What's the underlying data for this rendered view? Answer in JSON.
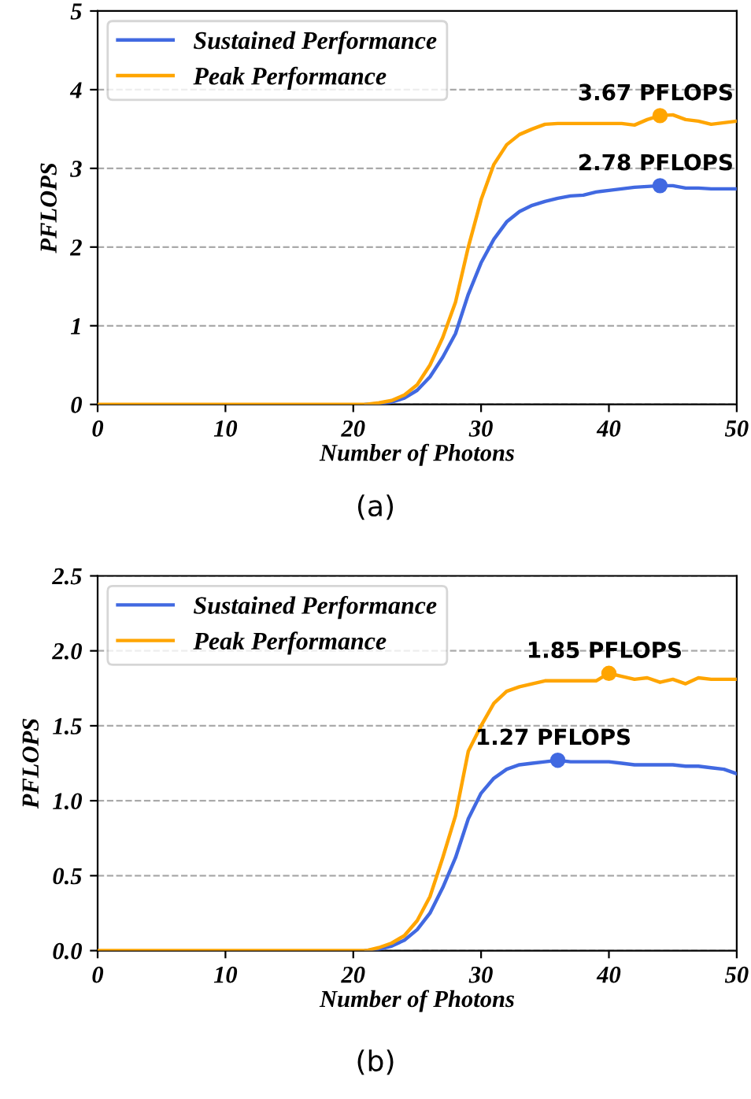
{
  "chart_data": [
    {
      "type": "line",
      "xlabel": "Number of Photons",
      "ylabel": "PFLOPS",
      "xlim": [
        0,
        50
      ],
      "xticks": [
        0,
        10,
        20,
        30,
        40,
        50
      ],
      "ylim": [
        0,
        5
      ],
      "yticks": [
        0,
        1,
        2,
        3,
        4,
        5
      ],
      "grid": "y",
      "legend": "top left",
      "x": [
        0,
        1,
        2,
        3,
        4,
        5,
        6,
        7,
        8,
        9,
        10,
        11,
        12,
        13,
        14,
        15,
        16,
        17,
        18,
        19,
        20,
        21,
        22,
        23,
        24,
        25,
        26,
        27,
        28,
        29,
        30,
        31,
        32,
        33,
        34,
        35,
        36,
        37,
        38,
        39,
        40,
        41,
        42,
        43,
        44,
        45,
        46,
        47,
        48,
        49,
        50
      ],
      "series": [
        {
          "name": "Sustained Performance",
          "color": "#4169e1",
          "values": [
            null,
            null,
            null,
            null,
            null,
            null,
            null,
            null,
            null,
            null,
            null,
            null,
            null,
            null,
            null,
            null,
            null,
            null,
            null,
            null,
            null,
            0,
            0.01,
            0.03,
            0.08,
            0.18,
            0.35,
            0.6,
            0.9,
            1.4,
            1.8,
            2.1,
            2.32,
            2.45,
            2.53,
            2.58,
            2.62,
            2.65,
            2.66,
            2.7,
            2.72,
            2.74,
            2.76,
            2.77,
            2.78,
            2.78,
            2.75,
            2.75,
            2.74,
            2.74,
            2.74
          ]
        },
        {
          "name": "Peak Performance",
          "color": "#ffa500",
          "values": [
            0,
            0,
            0,
            0,
            0,
            0,
            0,
            0,
            0,
            0,
            0,
            0,
            0,
            0,
            0,
            0,
            0,
            0,
            0,
            0,
            0,
            0,
            0.02,
            0.05,
            0.12,
            0.25,
            0.5,
            0.85,
            1.3,
            2.0,
            2.6,
            3.05,
            3.3,
            3.43,
            3.5,
            3.56,
            3.57,
            3.57,
            3.57,
            3.57,
            3.57,
            3.57,
            3.55,
            3.62,
            3.67,
            3.68,
            3.62,
            3.6,
            3.56,
            3.58,
            3.6
          ]
        }
      ],
      "annotations": [
        {
          "text": "3.67 PFLOPS",
          "x": 44,
          "y": 3.67
        },
        {
          "text": "2.78 PFLOPS",
          "x": 44,
          "y": 2.78
        },
        "(a)"
      ]
    },
    {
      "type": "line",
      "xlabel": "Number of Photons",
      "ylabel": "PFLOPS",
      "xlim": [
        0,
        50
      ],
      "xticks": [
        0,
        10,
        20,
        30,
        40,
        50
      ],
      "ylim": [
        0,
        2.5
      ],
      "yticks": [
        {
          "value": 0,
          "label": "0.0"
        },
        0.5,
        {
          "value": 1,
          "label": "1.0"
        },
        1.5,
        {
          "value": 2,
          "label": "2.0"
        },
        2.5
      ],
      "grid": "y",
      "legend": "top left",
      "x": [
        0,
        1,
        2,
        3,
        4,
        5,
        6,
        7,
        8,
        9,
        10,
        11,
        12,
        13,
        14,
        15,
        16,
        17,
        18,
        19,
        20,
        21,
        22,
        23,
        24,
        25,
        26,
        27,
        28,
        29,
        30,
        31,
        32,
        33,
        34,
        35,
        36,
        37,
        38,
        39,
        40,
        41,
        42,
        43,
        44,
        45,
        46,
        47,
        48,
        49,
        50
      ],
      "series": [
        {
          "name": "Sustained Performance",
          "color": "#4169e1",
          "values": [
            null,
            null,
            null,
            null,
            null,
            null,
            null,
            null,
            null,
            null,
            null,
            null,
            null,
            null,
            null,
            null,
            null,
            null,
            null,
            null,
            null,
            0,
            0.01,
            0.03,
            0.07,
            0.14,
            0.25,
            0.42,
            0.62,
            0.88,
            1.05,
            1.15,
            1.21,
            1.24,
            1.25,
            1.26,
            1.27,
            1.26,
            1.26,
            1.26,
            1.26,
            1.25,
            1.24,
            1.24,
            1.24,
            1.24,
            1.23,
            1.23,
            1.22,
            1.21,
            1.18
          ]
        },
        {
          "name": "Peak Performance",
          "color": "#ffa500",
          "values": [
            0,
            0,
            0,
            0,
            0,
            0,
            0,
            0,
            0,
            0,
            0,
            0,
            0,
            0,
            0,
            0,
            0,
            0,
            0,
            0,
            0,
            0,
            0.02,
            0.05,
            0.1,
            0.2,
            0.36,
            0.62,
            0.9,
            1.33,
            1.5,
            1.65,
            1.73,
            1.76,
            1.78,
            1.8,
            1.8,
            1.8,
            1.8,
            1.8,
            1.85,
            1.83,
            1.81,
            1.82,
            1.79,
            1.81,
            1.78,
            1.82,
            1.81,
            1.81,
            1.81
          ]
        }
      ],
      "annotations": [
        {
          "text": "1.85 PFLOPS",
          "x": 40,
          "y": 1.85
        },
        {
          "text": "1.27 PFLOPS",
          "x": 36,
          "y": 1.27
        },
        "(b)"
      ]
    }
  ]
}
